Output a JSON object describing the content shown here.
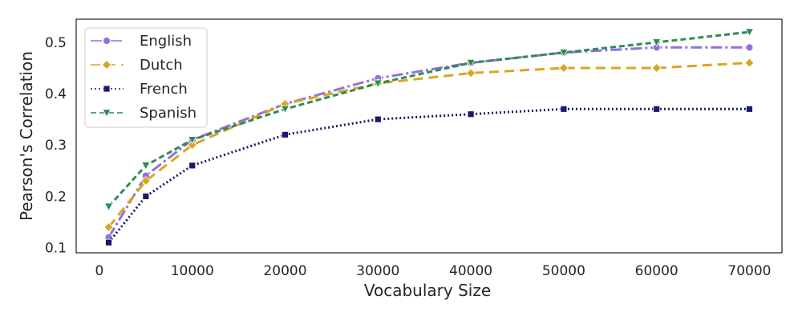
{
  "chart_data": {
    "type": "line",
    "title": "",
    "xlabel": "Vocabulary Size",
    "ylabel": "Pearson's Correlation",
    "x": [
      1000,
      5000,
      10000,
      20000,
      30000,
      40000,
      50000,
      60000,
      70000
    ],
    "xlim": [
      -2500,
      73500
    ],
    "ylim": [
      0.09,
      0.545
    ],
    "xticks": [
      0,
      10000,
      20000,
      30000,
      40000,
      50000,
      60000,
      70000
    ],
    "yticks": [
      0.1,
      0.2,
      0.3,
      0.4,
      0.5
    ],
    "xtick_labels": [
      "0",
      "10000",
      "20000",
      "30000",
      "40000",
      "50000",
      "60000",
      "70000"
    ],
    "ytick_labels": [
      "0.1",
      "0.2",
      "0.3",
      "0.4",
      "0.5"
    ],
    "grid": false,
    "legend_position": "top-left",
    "series": [
      {
        "name": "English",
        "color": "#9370db",
        "marker": "circle",
        "dash": "dashdot",
        "values": [
          0.12,
          0.24,
          0.31,
          0.38,
          0.43,
          0.46,
          0.48,
          0.49,
          0.49
        ]
      },
      {
        "name": "Dutch",
        "color": "#daa520",
        "marker": "diamond",
        "dash": "dashed",
        "values": [
          0.14,
          0.23,
          0.3,
          0.38,
          0.42,
          0.44,
          0.45,
          0.45,
          0.46
        ]
      },
      {
        "name": "French",
        "color": "#191970",
        "marker": "square",
        "dash": "dotted",
        "values": [
          0.11,
          0.2,
          0.26,
          0.32,
          0.35,
          0.36,
          0.37,
          0.37,
          0.37
        ]
      },
      {
        "name": "Spanish",
        "color": "#2e8b57",
        "marker": "triangle-down",
        "dash": "fine-dashed",
        "values": [
          0.18,
          0.26,
          0.31,
          0.37,
          0.42,
          0.46,
          0.48,
          0.5,
          0.52
        ]
      }
    ]
  }
}
